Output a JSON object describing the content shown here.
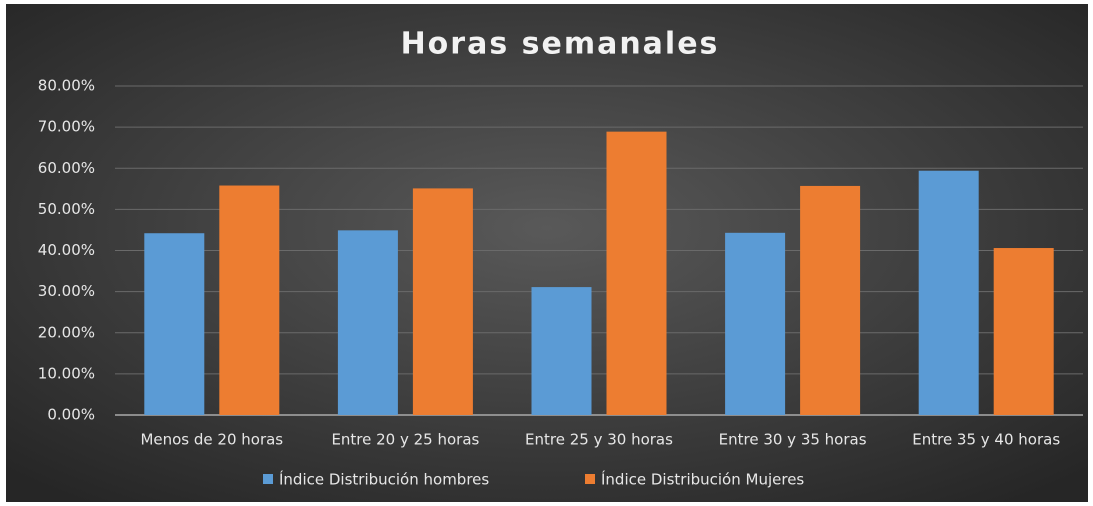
{
  "chart_data": {
    "type": "bar",
    "title": "Horas semanales",
    "categories": [
      "Menos de 20 horas",
      "Entre 20 y 25 horas",
      "Entre 25 y 30 horas",
      "Entre 30 y 35 horas",
      "Entre 35 y 40 horas"
    ],
    "series": [
      {
        "name": "Índice Distribución hombres",
        "color": "#5b9bd5",
        "values": [
          44.2,
          44.9,
          31.1,
          44.3,
          59.4
        ]
      },
      {
        "name": "Índice Distribución Mujeres",
        "color": "#ed7d31",
        "values": [
          55.8,
          55.1,
          68.9,
          55.7,
          40.6
        ]
      }
    ],
    "ylim": [
      0,
      80
    ],
    "yticks": [
      {
        "value": 0,
        "label": "0.00%"
      },
      {
        "value": 10,
        "label": "10.00%"
      },
      {
        "value": 20,
        "label": "20.00%"
      },
      {
        "value": 30,
        "label": "30.00%"
      },
      {
        "value": 40,
        "label": "40.00%"
      },
      {
        "value": 50,
        "label": "50.00%"
      },
      {
        "value": 60,
        "label": "60.00%"
      },
      {
        "value": 70,
        "label": "70.00%"
      },
      {
        "value": 80,
        "label": "80.00%"
      }
    ],
    "grid": true,
    "legend": "bottom"
  }
}
